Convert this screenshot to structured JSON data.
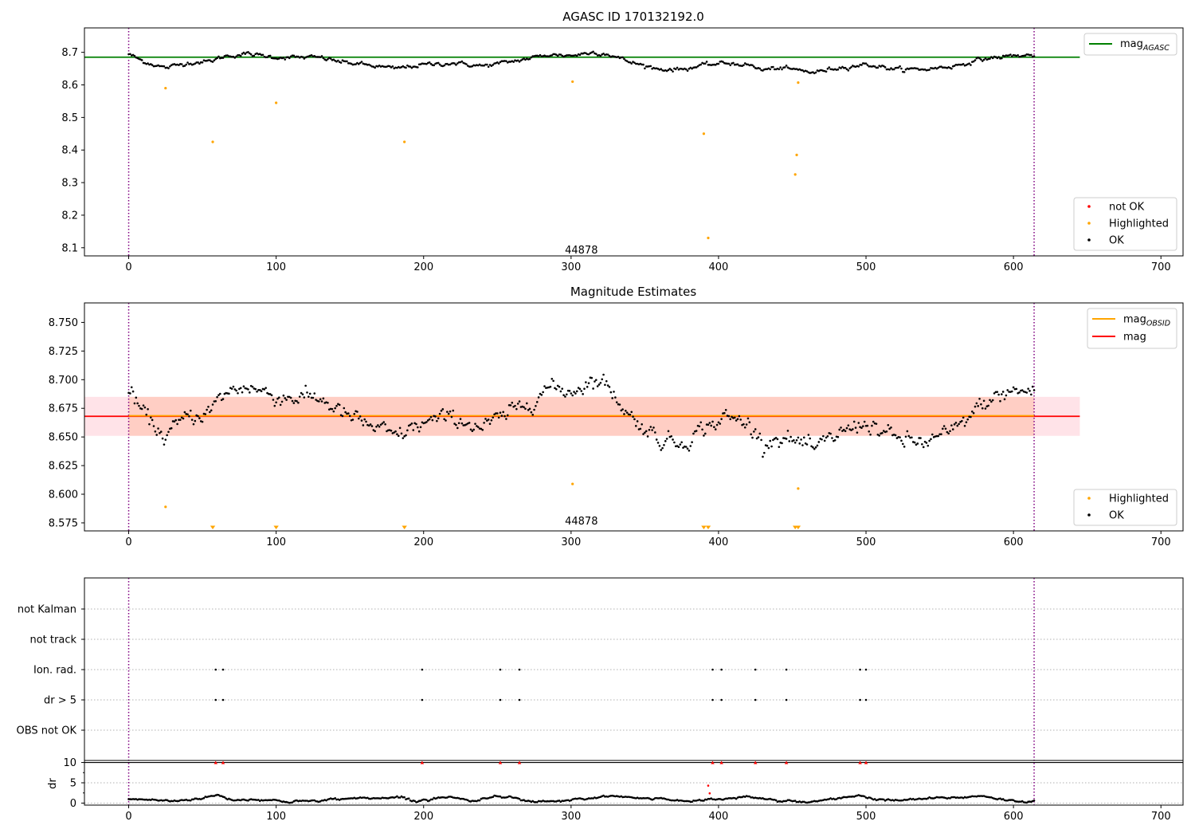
{
  "chart_data": [
    {
      "type": "scatter",
      "title": "AGASC ID 170132192.0",
      "xlim": [
        -30,
        715
      ],
      "ylim": [
        8.075,
        8.775
      ],
      "xticks": [
        0,
        100,
        200,
        300,
        400,
        500,
        600,
        700
      ],
      "yticks": [
        8.1,
        8.2,
        8.3,
        8.4,
        8.5,
        8.6,
        8.7
      ],
      "ytick_decimals": 1,
      "annotation": {
        "text": "44878",
        "x": 307,
        "y": 8.095
      },
      "vlines": [
        0,
        614
      ],
      "hline": {
        "y": 8.685,
        "x_end": 645,
        "color": "#008000",
        "name": "mag",
        "subscript": "AGASC"
      },
      "legend_upper": {
        "placement": "upper right",
        "entries": [
          {
            "label": "mag",
            "sub": "AGASC",
            "color": "#008000"
          }
        ]
      },
      "legend_lower": {
        "placement": "lower right",
        "entries": [
          {
            "label": "not OK",
            "color": "#ff0000"
          },
          {
            "label": "Highlighted",
            "color": "#ffa500"
          },
          {
            "label": "OK",
            "color": "#000000"
          }
        ]
      },
      "ok_trend": {
        "name": "OK",
        "color": "#000000",
        "n": 614,
        "anchors": [
          [
            0,
            8.695
          ],
          [
            10,
            8.672
          ],
          [
            25,
            8.652
          ],
          [
            40,
            8.668
          ],
          [
            55,
            8.672
          ],
          [
            65,
            8.688
          ],
          [
            80,
            8.695
          ],
          [
            100,
            8.685
          ],
          [
            130,
            8.684
          ],
          [
            145,
            8.67
          ],
          [
            160,
            8.662
          ],
          [
            180,
            8.65
          ],
          [
            200,
            8.662
          ],
          [
            220,
            8.667
          ],
          [
            240,
            8.658
          ],
          [
            255,
            8.668
          ],
          [
            270,
            8.68
          ],
          [
            285,
            8.693
          ],
          [
            300,
            8.69
          ],
          [
            315,
            8.7
          ],
          [
            325,
            8.695
          ],
          [
            340,
            8.67
          ],
          [
            360,
            8.648
          ],
          [
            375,
            8.648
          ],
          [
            390,
            8.66
          ],
          [
            405,
            8.667
          ],
          [
            420,
            8.662
          ],
          [
            430,
            8.645
          ],
          [
            440,
            8.652
          ],
          [
            455,
            8.645
          ],
          [
            465,
            8.638
          ],
          [
            480,
            8.652
          ],
          [
            500,
            8.663
          ],
          [
            520,
            8.648
          ],
          [
            540,
            8.648
          ],
          [
            560,
            8.658
          ],
          [
            580,
            8.68
          ],
          [
            600,
            8.69
          ],
          [
            614,
            8.69
          ]
        ],
        "noise": 0.006
      },
      "highlighted": {
        "name": "Highlighted",
        "color": "#ffa500",
        "points": [
          [
            25,
            8.59
          ],
          [
            57,
            8.425
          ],
          [
            100,
            8.545
          ],
          [
            187,
            8.425
          ],
          [
            301,
            8.61
          ],
          [
            390,
            8.45
          ],
          [
            393,
            8.13
          ],
          [
            452,
            8.325
          ],
          [
            453,
            8.385
          ],
          [
            454,
            8.607
          ]
        ]
      },
      "not_ok": {
        "name": "not OK",
        "color": "#ff0000",
        "points": []
      }
    },
    {
      "type": "scatter",
      "title": "Magnitude Estimates",
      "xlim": [
        -30,
        715
      ],
      "ylim": [
        8.568,
        8.767
      ],
      "xticks": [
        0,
        100,
        200,
        300,
        400,
        500,
        600,
        700
      ],
      "yticks": [
        8.575,
        8.6,
        8.625,
        8.65,
        8.675,
        8.7,
        8.725,
        8.75
      ],
      "ytick_decimals": 3,
      "annotation": {
        "text": "44878",
        "x": 307,
        "y": 8.577
      },
      "vlines": [
        0,
        614
      ],
      "mag_line": {
        "y": 8.668,
        "x_end": 645,
        "color": "#ff0000",
        "band": [
          8.651,
          8.685
        ],
        "band_color": "#ffc0cb"
      },
      "obsid_line": {
        "y": 8.6685,
        "x_end": 614,
        "color": "#ffa500",
        "band": [
          8.651,
          8.685
        ],
        "band_color": "#ffa070"
      },
      "legend_upper": {
        "placement": "upper right",
        "entries": [
          {
            "label": "mag",
            "sub": "OBSID",
            "color": "#ffa500"
          },
          {
            "label": "mag",
            "color": "#ff0000"
          }
        ]
      },
      "legend_lower": {
        "placement": "lower right",
        "entries": [
          {
            "label": "Highlighted",
            "color": "#ffa500"
          },
          {
            "label": "OK",
            "color": "#000000"
          }
        ]
      },
      "ok_trend": {
        "name": "OK",
        "color": "#000000",
        "n": 614,
        "anchors": [
          [
            0,
            8.69
          ],
          [
            10,
            8.67
          ],
          [
            25,
            8.65
          ],
          [
            40,
            8.668
          ],
          [
            55,
            8.672
          ],
          [
            65,
            8.688
          ],
          [
            80,
            8.695
          ],
          [
            100,
            8.685
          ],
          [
            130,
            8.684
          ],
          [
            145,
            8.67
          ],
          [
            160,
            8.662
          ],
          [
            180,
            8.65
          ],
          [
            200,
            8.662
          ],
          [
            220,
            8.667
          ],
          [
            240,
            8.658
          ],
          [
            255,
            8.668
          ],
          [
            270,
            8.68
          ],
          [
            285,
            8.693
          ],
          [
            300,
            8.69
          ],
          [
            315,
            8.7
          ],
          [
            325,
            8.695
          ],
          [
            340,
            8.668
          ],
          [
            360,
            8.648
          ],
          [
            375,
            8.645
          ],
          [
            390,
            8.658
          ],
          [
            405,
            8.667
          ],
          [
            420,
            8.662
          ],
          [
            430,
            8.645
          ],
          [
            440,
            8.65
          ],
          [
            455,
            8.645
          ],
          [
            465,
            8.638
          ],
          [
            480,
            8.652
          ],
          [
            500,
            8.663
          ],
          [
            520,
            8.648
          ],
          [
            540,
            8.645
          ],
          [
            560,
            8.655
          ],
          [
            580,
            8.68
          ],
          [
            600,
            8.69
          ],
          [
            614,
            8.69
          ]
        ],
        "noise": 0.007
      },
      "highlighted": {
        "name": "Highlighted",
        "color": "#ffa500",
        "points": [
          [
            25,
            8.589
          ],
          [
            301,
            8.609
          ],
          [
            454,
            8.605
          ]
        ]
      },
      "below_markers": {
        "color": "#ffa500",
        "x": [
          57,
          100,
          187,
          390,
          393,
          452,
          454
        ]
      }
    },
    {
      "type": "scatter",
      "xlim": [
        -30,
        715
      ],
      "xticks": [
        0,
        100,
        200,
        300,
        400,
        500,
        600,
        700
      ],
      "vlines": [
        0,
        614
      ],
      "flag_rows": [
        "not Kalman",
        "not track",
        "Ion. rad.",
        "dr > 5",
        "OBS not OK"
      ],
      "flags": {
        "Ion. rad.": [
          59,
          64,
          199,
          252,
          265,
          396,
          402,
          425,
          446,
          496,
          500
        ],
        "dr > 5": [
          59,
          64,
          199,
          252,
          265,
          396,
          402,
          425,
          446,
          496,
          500
        ]
      },
      "dr_panel": {
        "ylabel": "dr",
        "ylim": [
          -0.5,
          10.5
        ],
        "yticks": [
          0,
          5,
          10
        ],
        "hline": 10,
        "clipped_markers": {
          "color": "#ff0000",
          "x": [
            59,
            64,
            199,
            252,
            265,
            396,
            402,
            425,
            446,
            496,
            500
          ]
        },
        "red_points": [
          [
            393,
            4.3
          ],
          [
            394,
            2.4
          ]
        ],
        "dr_trend": {
          "n": 614,
          "anchors": [
            [
              0,
              1.0
            ],
            [
              15,
              0.8
            ],
            [
              30,
              0.5
            ],
            [
              50,
              1.2
            ],
            [
              60,
              2.0
            ],
            [
              70,
              0.8
            ],
            [
              90,
              0.9
            ],
            [
              110,
              0.3
            ],
            [
              130,
              0.6
            ],
            [
              150,
              1.2
            ],
            [
              170,
              1.3
            ],
            [
              185,
              1.4
            ],
            [
              195,
              0.5
            ],
            [
              210,
              1.3
            ],
            [
              220,
              1.5
            ],
            [
              235,
              0.4
            ],
            [
              248,
              1.8
            ],
            [
              258,
              1.6
            ],
            [
              275,
              0.3
            ],
            [
              290,
              0.4
            ],
            [
              310,
              1.0
            ],
            [
              325,
              1.8
            ],
            [
              345,
              1.2
            ],
            [
              365,
              1.0
            ],
            [
              380,
              0.5
            ],
            [
              392,
              0.8
            ],
            [
              400,
              1.0
            ],
            [
              420,
              1.6
            ],
            [
              440,
              0.6
            ],
            [
              460,
              0.3
            ],
            [
              480,
              1.0
            ],
            [
              495,
              2.0
            ],
            [
              505,
              1.0
            ],
            [
              520,
              0.6
            ],
            [
              545,
              1.2
            ],
            [
              565,
              1.4
            ],
            [
              580,
              1.8
            ],
            [
              595,
              0.7
            ],
            [
              614,
              0.3
            ]
          ],
          "noise": 0.25
        }
      }
    }
  ]
}
